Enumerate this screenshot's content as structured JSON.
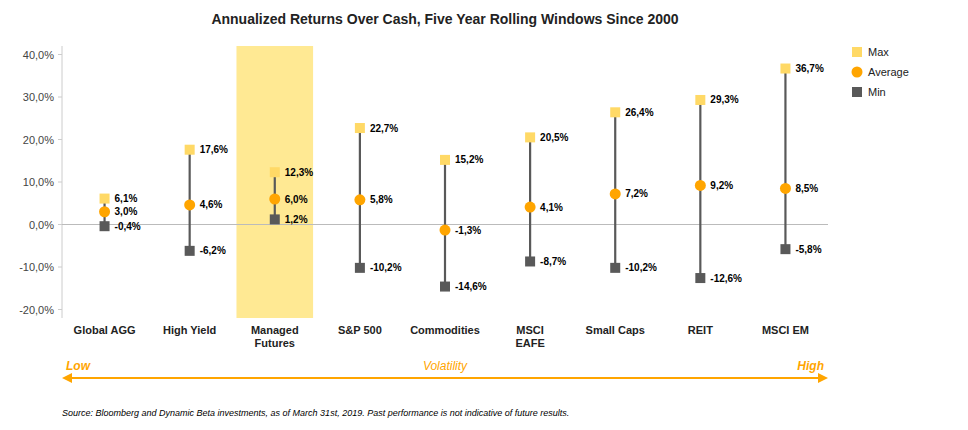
{
  "chart_data": {
    "type": "range",
    "title": "Annualized Returns Over Cash, Five Year Rolling Windows Since 2000",
    "categories": [
      "Global AGG",
      "High Yield",
      "Managed\nFutures",
      "S&P 500",
      "Commodities",
      "MSCI\nEAFE",
      "Small Caps",
      "REIT",
      "MSCI EM"
    ],
    "series": [
      {
        "name": "Max",
        "color": "#FFD966",
        "marker": "square",
        "values": [
          6.1,
          17.6,
          12.3,
          22.7,
          15.2,
          20.5,
          26.4,
          29.3,
          36.7
        ],
        "value_labels": [
          "6,1%",
          "17,6%",
          "12,3%",
          "22,7%",
          "15,2%",
          "20,5%",
          "26,4%",
          "29,3%",
          "36,7%"
        ]
      },
      {
        "name": "Average",
        "color": "#FFA500",
        "marker": "circle",
        "values": [
          3.0,
          4.6,
          6.0,
          5.8,
          -1.3,
          4.1,
          7.2,
          9.2,
          8.5
        ],
        "value_labels": [
          "3,0%",
          "4,6%",
          "6,0%",
          "5,8%",
          "-1,3%",
          "4,1%",
          "7,2%",
          "9,2%",
          "8,5%"
        ]
      },
      {
        "name": "Min",
        "color": "#595959",
        "marker": "square",
        "values": [
          -0.4,
          -6.2,
          1.2,
          -10.2,
          -14.6,
          -8.7,
          -10.2,
          -12.6,
          -5.8
        ],
        "value_labels": [
          "-0,4%",
          "-6,2%",
          "1,2%",
          "-10,2%",
          "-14,6%",
          "-8,7%",
          "-10,2%",
          "-12,6%",
          "-5,8%"
        ]
      }
    ],
    "ylim": [
      -22,
      42
    ],
    "yticks": [
      {
        "value": -20,
        "label": "-20,0%"
      },
      {
        "value": -10,
        "label": "-10,0%"
      },
      {
        "value": 0,
        "label": "0,0%"
      },
      {
        "value": 10,
        "label": "10,0%"
      },
      {
        "value": 20,
        "label": "20,0%"
      },
      {
        "value": 30,
        "label": "30,0%"
      },
      {
        "value": 40,
        "label": "40,0%"
      }
    ],
    "grid": false,
    "legend": "right",
    "data_labels": true,
    "highlight": {
      "category": "Managed\nFutures",
      "color": "#FFE580"
    },
    "annotations": [
      "Low",
      "Volatility",
      "High"
    ],
    "source": "Source: Bloomberg and Dynamic Beta investments, as of March 31st, 2019. Past performance is not indicative of future results."
  }
}
